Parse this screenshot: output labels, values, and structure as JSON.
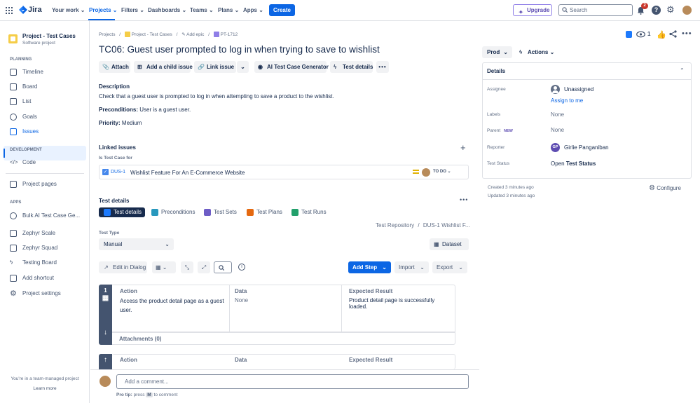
{
  "topbar": {
    "brand": "Jira",
    "nav": [
      "Your work",
      "Projects",
      "Filters",
      "Dashboards",
      "Teams",
      "Plans",
      "Apps"
    ],
    "create": "Create",
    "upgrade": "Upgrade",
    "search_placeholder": "Search",
    "notification_count": "2"
  },
  "sidebar": {
    "project_name": "Project - Test Cases",
    "project_type": "Software project",
    "planning_heading": "PLANNING",
    "planning_items": [
      "Timeline",
      "Board",
      "List",
      "Goals",
      "Issues"
    ],
    "development_heading": "DEVELOPMENT",
    "development_items": [
      "Code"
    ],
    "project_pages": "Project pages",
    "apps_heading": "APPS",
    "apps_items": [
      "Bulk AI Test Case Ge...",
      "Zephyr Scale",
      "Zephyr Squad",
      "Testing Board",
      "Add shortcut",
      "Project settings"
    ],
    "footer_text": "You're in a team-managed project",
    "learn_more": "Learn more"
  },
  "breadcrumb": {
    "projects": "Projects",
    "project": "Project - Test Cases",
    "add_epic": "Add epic",
    "issue_key": "PT-1712"
  },
  "issue": {
    "title": "TC06: Guest user prompted to log in when trying to save to wishlist",
    "watch_count": "1",
    "toolbar": [
      "Attach",
      "Add a child issue",
      "Link issue",
      "AI Test Case Generator",
      "Test details"
    ],
    "description_heading": "Description",
    "description": "Check that a guest user is prompted to log in when attempting to save a product to the wishlist.",
    "preconditions_label": "Preconditions:",
    "preconditions_value": "User is a guest user.",
    "priority_label": "Priority:",
    "priority_value": "Medium"
  },
  "linked": {
    "heading": "Linked issues",
    "relation": "Is Test Case for",
    "key": "DUS-1",
    "summary": "Wishlist Feature For An E-Commerce Website",
    "status": "TO DO"
  },
  "test_details": {
    "heading": "Test details",
    "tabs": [
      "Test details",
      "Preconditions",
      "Test Sets",
      "Test Plans",
      "Test Runs"
    ],
    "repo_path_1": "Test Repository",
    "repo_path_2": "DUS-1 Wishlist F...",
    "test_type_label": "Test Type",
    "test_type_value": "Manual",
    "dataset": "Dataset",
    "edit_in_dialog": "Edit in Dialog",
    "add_step": "Add Step",
    "import": "Import",
    "export": "Export",
    "columns": [
      "Action",
      "Data",
      "Expected Result"
    ],
    "steps": [
      {
        "num": "1",
        "action": "Access the product detail page as a guest user.",
        "data": "None",
        "expected": "Product detail page is successfully loaded."
      }
    ],
    "attachments": "Attachments (0)"
  },
  "comment": {
    "placeholder": "Add a comment...",
    "pro_tip_prefix": "Pro tip:",
    "pro_tip_press": "press",
    "pro_tip_key": "M",
    "pro_tip_suffix": "to comment"
  },
  "right_panel": {
    "env": "Prod",
    "actions": "Actions",
    "details_heading": "Details",
    "assignee_label": "Assignee",
    "assignee_value": "Unassigned",
    "assign_to_me": "Assign to me",
    "labels_label": "Labels",
    "labels_value": "None",
    "parent_label": "Parent",
    "parent_badge": "NEW",
    "parent_value": "None",
    "reporter_label": "Reporter",
    "reporter_initials": "GP",
    "reporter_value": "Girlie Panganiban",
    "test_status_label": "Test Status",
    "test_status_prefix": "Open",
    "test_status_value": "Test Status",
    "created": "Created 3 minutes ago",
    "updated": "Updated 3 minutes ago",
    "configure": "Configure"
  },
  "colors": {
    "primary": "#0c66e4",
    "dark": "#172b4d",
    "sidebar_active_bg": "#e9f2ff",
    "step_gutter": "#44546f",
    "notification": "#c9372c",
    "upgrade_purple": "#5e4db2"
  }
}
